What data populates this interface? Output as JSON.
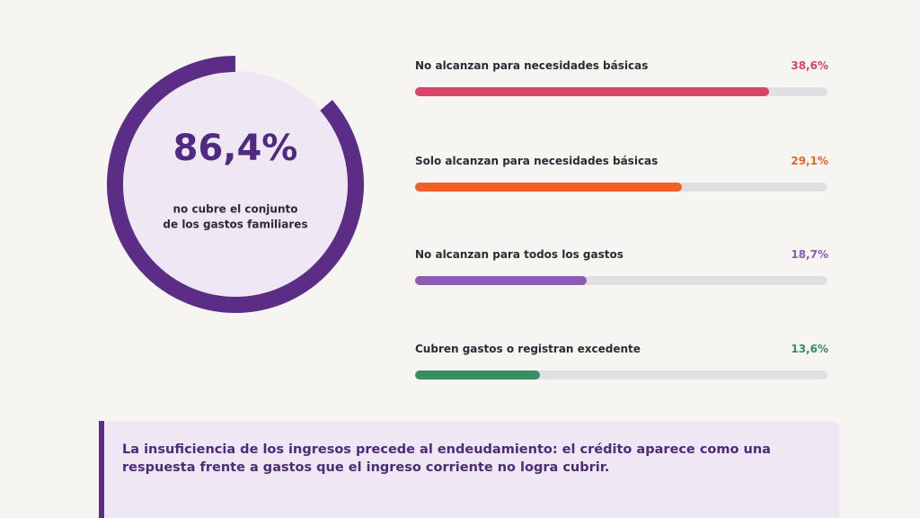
{
  "chart_data": [
    {
      "type": "donut",
      "value": 86.4,
      "value_label": "86,4%",
      "color": "#5b2d86",
      "ylim": [
        0,
        100
      ],
      "subtitle_lines": [
        "no cubre el conjunto",
        "de los gastos familiares"
      ]
    },
    {
      "type": "bar",
      "categories": [
        "No alcanzan para necesidades básicas",
        "Solo alcanzan para necesidades básicas",
        "No alcanzan para todos los gastos",
        "Cubren gastos o registran excedente"
      ],
      "values": [
        38.6,
        29.1,
        18.7,
        13.6
      ],
      "value_labels": [
        "38,6%",
        "29,1%",
        "18,7%",
        "13,6%"
      ],
      "colors": [
        "#d6456a",
        "#f0612a",
        "#8a5cb5",
        "#3a8c63"
      ],
      "xlim": [
        0,
        45
      ]
    }
  ],
  "callout": {
    "lines": [
      "La insuficiencia de los ingresos precede al endeudamiento: el crédito aparece como una",
      "respuesta frente a gastos que el ingreso corriente no logra cubrir."
    ]
  }
}
